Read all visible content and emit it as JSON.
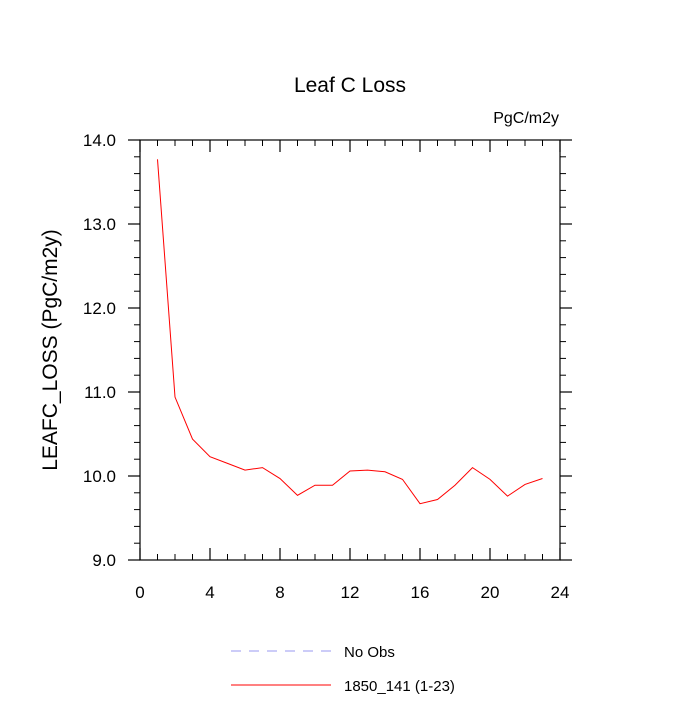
{
  "chart_data": {
    "type": "line",
    "title": "Leaf C Loss",
    "units": "PgC/m2y",
    "ylabel": "LEAFC_LOSS  (PgC/m2y)",
    "xlabel": "",
    "xlim": [
      0,
      24
    ],
    "ylim": [
      9.0,
      14.0
    ],
    "x_ticks": [
      0,
      4,
      8,
      12,
      16,
      20,
      24
    ],
    "x_tick_labels": [
      "0",
      "4",
      "8",
      "12",
      "16",
      "20",
      "24"
    ],
    "y_ticks": [
      9.0,
      10.0,
      11.0,
      12.0,
      13.0,
      14.0
    ],
    "y_tick_labels": [
      "9.0",
      "10.0",
      "11.0",
      "12.0",
      "13.0",
      "14.0"
    ],
    "series": [
      {
        "name": "1850_141 (1-23)",
        "color": "#ff0000",
        "x": [
          1,
          2,
          3,
          4,
          5,
          6,
          7,
          8,
          9,
          10,
          11,
          12,
          13,
          14,
          15,
          16,
          17,
          18,
          19,
          20,
          21,
          22,
          23
        ],
        "values": [
          13.77,
          10.94,
          10.44,
          10.23,
          10.15,
          10.07,
          10.1,
          9.97,
          9.77,
          9.89,
          9.89,
          10.06,
          10.07,
          10.05,
          9.96,
          9.67,
          9.72,
          9.89,
          10.1,
          9.96,
          9.76,
          9.9,
          9.97
        ]
      }
    ],
    "legend": [
      {
        "label": "No Obs",
        "color": "#9a9af0",
        "style": "dashed"
      },
      {
        "label": "1850_141 (1-23)",
        "color": "#ff0000",
        "style": "solid"
      }
    ],
    "legend_position": "bottom-center",
    "grid": false
  }
}
